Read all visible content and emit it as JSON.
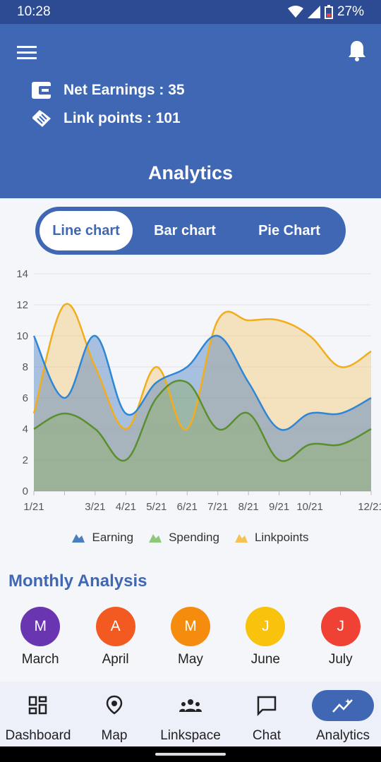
{
  "status": {
    "time": "10:28",
    "battery": "27%"
  },
  "header": {
    "net_earnings": "Net Earnings : 35",
    "link_points": "Link points : 101",
    "title": "Analytics"
  },
  "tabs": [
    {
      "label": "Line chart",
      "active": true
    },
    {
      "label": "Bar chart",
      "active": false
    },
    {
      "label": "Pie Chart",
      "active": false
    }
  ],
  "chart_data": {
    "type": "area",
    "x_ticks": [
      "1/21",
      "3/21",
      "4/21",
      "5/21",
      "6/21",
      "7/21",
      "8/21",
      "9/21",
      "10/21",
      "12/21"
    ],
    "x_index": [
      1,
      2,
      3,
      4,
      5,
      6,
      7,
      8,
      9,
      10,
      11,
      12
    ],
    "ylim": [
      0,
      14
    ],
    "yticks": [
      0,
      2,
      4,
      6,
      8,
      10,
      12,
      14
    ],
    "grid": true,
    "legend_position": "bottom",
    "series": [
      {
        "name": "Earning",
        "color": "#2f86d6",
        "fill": "#4a7fbf",
        "values": [
          10,
          6,
          10,
          5,
          7,
          8,
          10,
          7,
          4,
          5,
          5,
          6
        ]
      },
      {
        "name": "Spending",
        "color": "#5a8f2e",
        "fill": "#8fae6a",
        "values": [
          4,
          5,
          4,
          2,
          6,
          7,
          4,
          5,
          2,
          3,
          3,
          4
        ]
      },
      {
        "name": "Linkpoints",
        "color": "#f2ad1b",
        "fill": "#f4c873",
        "values": [
          5,
          12,
          8,
          4,
          8,
          4,
          11,
          11,
          11,
          10,
          8,
          9
        ]
      }
    ]
  },
  "section": {
    "title": "Monthly Analysis"
  },
  "months": [
    {
      "letter": "M",
      "name": "March",
      "color": "#6a35b1"
    },
    {
      "letter": "A",
      "name": "April",
      "color": "#f25a22"
    },
    {
      "letter": "M",
      "name": "May",
      "color": "#f68c0e"
    },
    {
      "letter": "J",
      "name": "June",
      "color": "#f9c20c"
    },
    {
      "letter": "J",
      "name": "July",
      "color": "#ef4134"
    }
  ],
  "nav": [
    {
      "label": "Dashboard",
      "icon": "dashboard-icon",
      "active": false
    },
    {
      "label": "Map",
      "icon": "map-pin-icon",
      "active": false
    },
    {
      "label": "Linkspace",
      "icon": "people-icon",
      "active": false
    },
    {
      "label": "Chat",
      "icon": "chat-icon",
      "active": false
    },
    {
      "label": "Analytics",
      "icon": "analytics-icon",
      "active": true
    }
  ]
}
